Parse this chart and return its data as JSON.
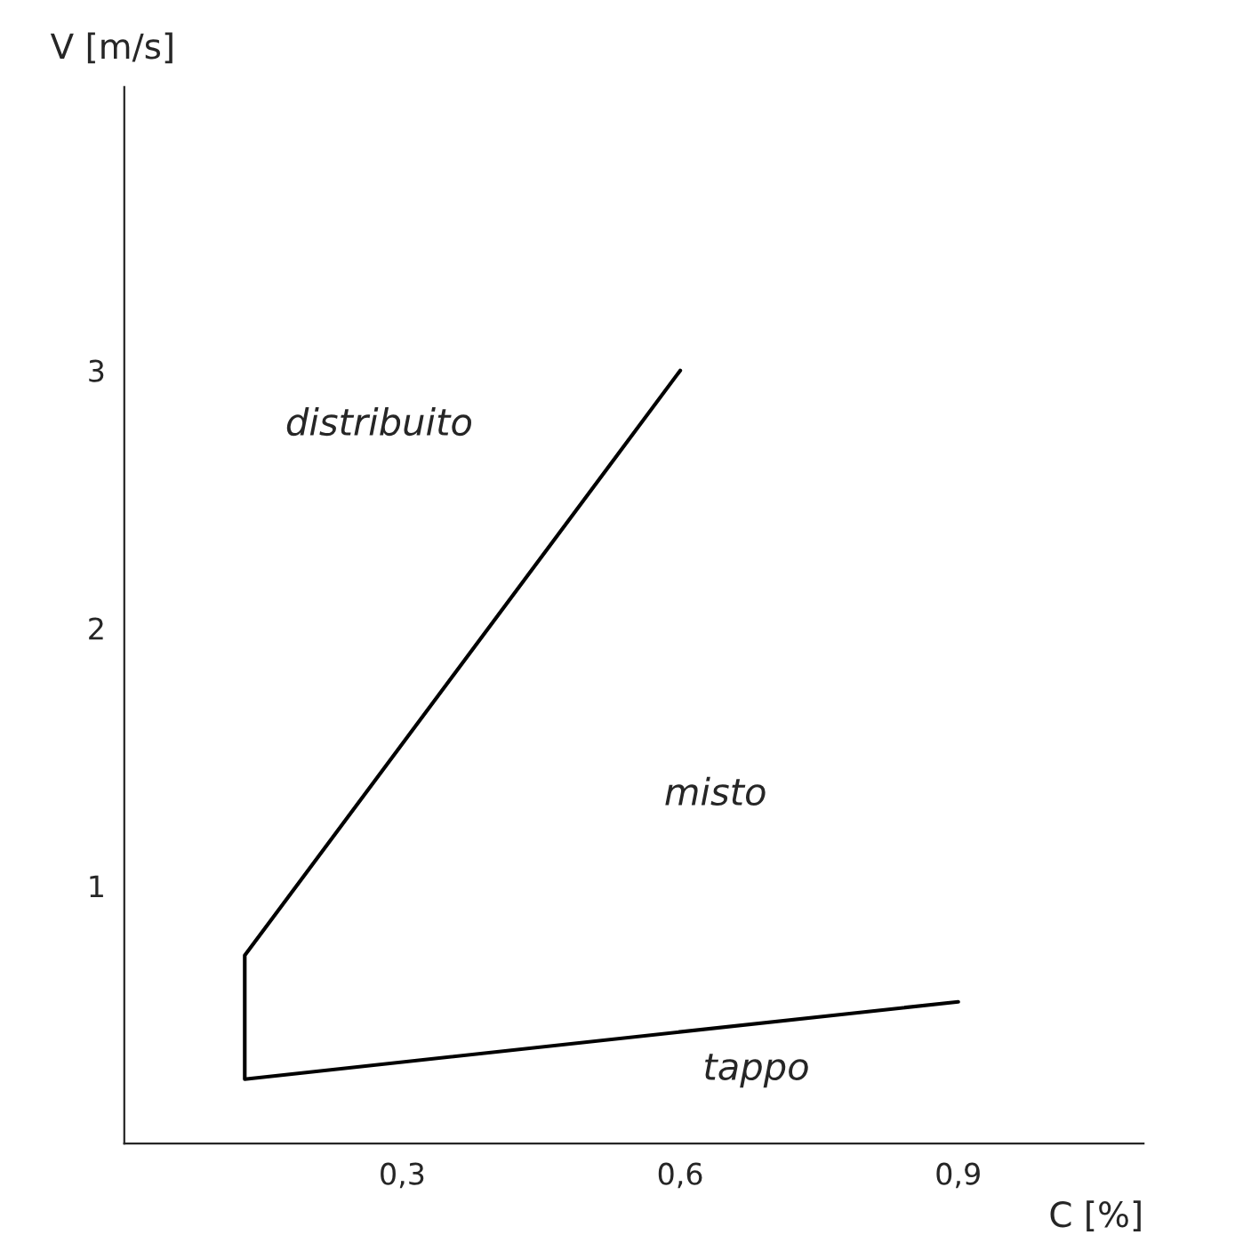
{
  "chart_data": {
    "type": "line",
    "xlabel": "C [%]",
    "ylabel": "V [m/s]",
    "x": [
      0.6,
      0.13,
      0.13,
      0.9
    ],
    "series": [
      {
        "color": "#000000",
        "values": [
          3.0,
          0.73,
          0.25,
          0.55
        ]
      }
    ],
    "xlim": [
      0,
      1.1
    ],
    "ylim": [
      0,
      4.1
    ],
    "xticks": [
      {
        "value": 0.3,
        "label": "0,3"
      },
      {
        "value": 0.6,
        "label": "0,6"
      },
      {
        "value": 0.9,
        "label": "0,9"
      }
    ],
    "yticks": [
      1,
      2,
      3
    ],
    "annotations": [
      "distribuito",
      "misto",
      "tappo"
    ],
    "grid": false,
    "legend": false,
    "marker": "none",
    "line_style": "solid"
  }
}
